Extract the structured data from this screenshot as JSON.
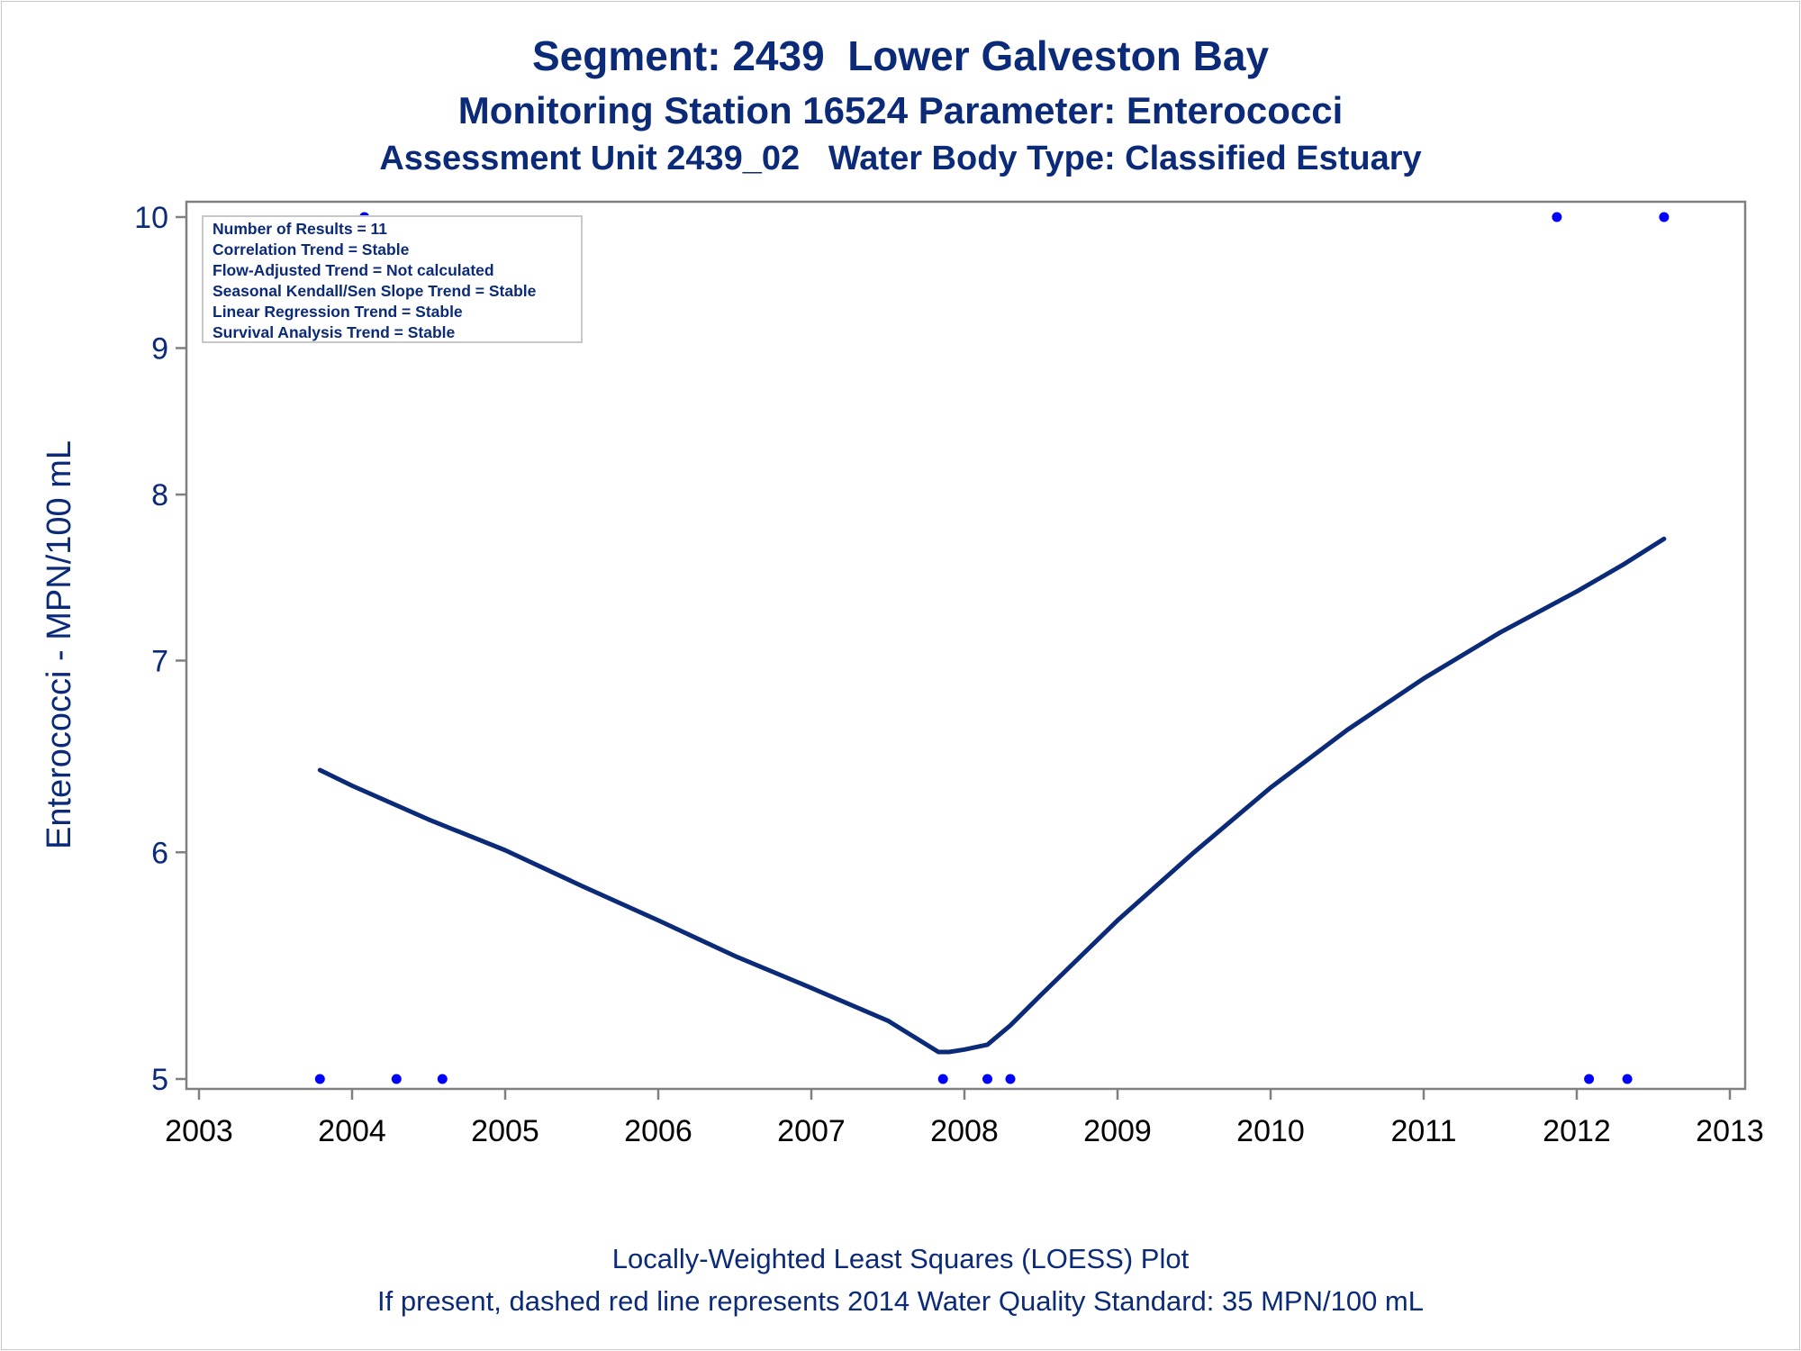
{
  "titles": {
    "line1": "Segment: 2439  Lower Galveston Bay",
    "line2": "Monitoring Station 16524 Parameter: Enterococci",
    "line3": "Assessment Unit 2439_02   Water Body Type: Classified Estuary"
  },
  "footer": {
    "line1": "Locally-Weighted Least Squares (LOESS) Plot",
    "line2": "If present, dashed red line represents 2014 Water Quality Standard: 35 MPN/100 mL"
  },
  "inset": {
    "lines": [
      "Number of Results = 11",
      "Correlation Trend = Stable",
      "Flow-Adjusted Trend = Not calculated",
      "Seasonal Kendall/Sen Slope Trend = Stable",
      "Linear Regression Trend = Stable",
      "Survival Analysis Trend = Stable"
    ]
  },
  "colors": {
    "text": "#0b2a78",
    "line": "#0b2a78",
    "points": "#0000ff",
    "axis": "#808080"
  },
  "chart_data": {
    "type": "scatter",
    "xlabel": "",
    "ylabel": "Enterococci - MPN/100 mL",
    "x_scale": "linear (year)",
    "y_scale": "log",
    "xlim": [
      2003,
      2013
    ],
    "ylim": [
      5,
      10
    ],
    "x_ticks": [
      2003,
      2004,
      2005,
      2006,
      2007,
      2008,
      2009,
      2010,
      2011,
      2012,
      2013
    ],
    "y_ticks": [
      5,
      6,
      7,
      8,
      9,
      10
    ],
    "grid": false,
    "series": [
      {
        "kind": "points",
        "x": [
          2003.79,
          2004.08,
          2004.29,
          2004.59,
          2007.86,
          2008.15,
          2008.3,
          2011.87,
          2012.08,
          2012.33,
          2012.57
        ],
        "y": [
          5,
          10,
          5,
          5,
          5,
          5,
          5,
          10,
          5,
          5,
          10
        ]
      },
      {
        "kind": "loess",
        "x": [
          2003.79,
          2004.0,
          2004.5,
          2005.0,
          2005.5,
          2006.0,
          2006.5,
          2007.0,
          2007.5,
          2007.83,
          2007.9,
          2008.0,
          2008.15,
          2008.3,
          2008.5,
          2009.0,
          2009.5,
          2010.0,
          2010.5,
          2011.0,
          2011.5,
          2012.0,
          2012.3,
          2012.57
        ],
        "y": [
          6.41,
          6.33,
          6.16,
          6.01,
          5.84,
          5.68,
          5.52,
          5.38,
          5.24,
          5.11,
          5.11,
          5.12,
          5.14,
          5.22,
          5.35,
          5.68,
          6.0,
          6.32,
          6.62,
          6.9,
          7.16,
          7.4,
          7.56,
          7.72
        ]
      }
    ]
  }
}
